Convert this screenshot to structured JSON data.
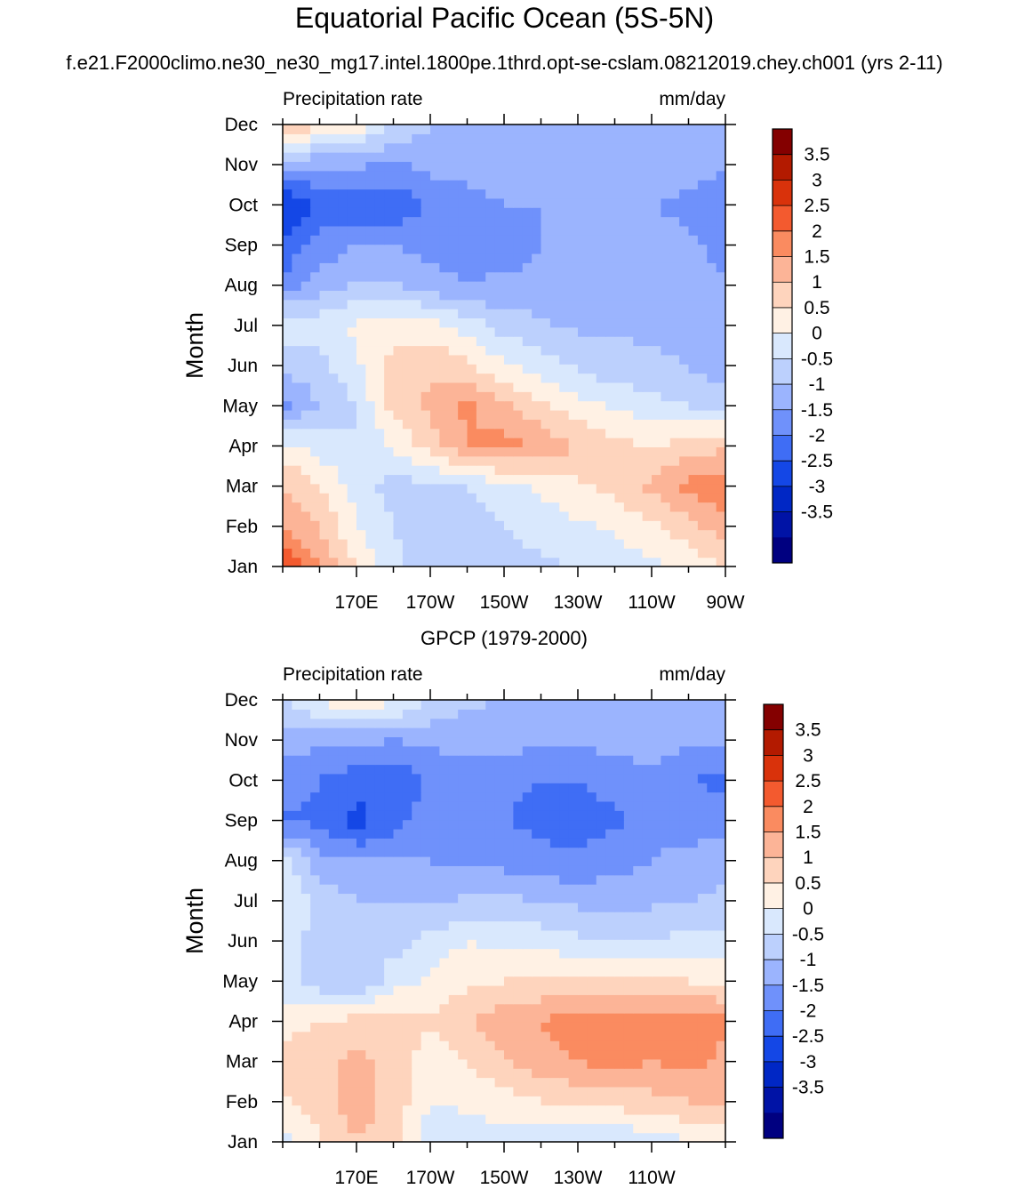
{
  "title": "Equatorial Pacific Ocean (5S-5N)",
  "case_name": "f.e21.F2000climo.ne30_ne30_mg17.intel.1800pe.1thrd.opt-se-cslam.08212019.chey.ch001 (yrs 2-11)",
  "panel2_title": "GPCP (1979-2000)",
  "colors": {
    "levels": [
      "#000080",
      "#0013a6",
      "#0027c5",
      "#1447e6",
      "#3f6df5",
      "#6f91fb",
      "#9bb4fe",
      "#bcd0fd",
      "#d9e8fd",
      "#fff1e4",
      "#fed4bd",
      "#fcb497",
      "#fa8b60",
      "#f35a2f",
      "#d9320b",
      "#b31a00",
      "#840000"
    ]
  },
  "chart_data": [
    {
      "type": "heatmap",
      "title": "",
      "left_label": "Precipitation rate",
      "right_label": "mm/day",
      "ylabel": "Month",
      "xlabel": "",
      "x_ticklabels": [
        "170E",
        "170W",
        "150W",
        "130W",
        "110W",
        "90W"
      ],
      "y_ticklabels": [
        "Jan",
        "Feb",
        "Mar",
        "Apr",
        "May",
        "Jun",
        "Jul",
        "Aug",
        "Sep",
        "Oct",
        "Nov",
        "Dec"
      ],
      "colorbar_labels": [
        "3.5",
        "3",
        "2.5",
        "2",
        "1.5",
        "1",
        "0.5",
        "0",
        "-0.5",
        "-1",
        "-1.5",
        "-2",
        "-2.5",
        "-3",
        "-3.5"
      ],
      "x_columns": [
        "150E",
        "160E",
        "170E",
        "180",
        "170W",
        "160W",
        "150W",
        "140W",
        "130W",
        "120W",
        "110W",
        "100W",
        "90W"
      ],
      "grid": [
        [
          3.0,
          2.0,
          1.0,
          0.2,
          -0.3,
          -0.3,
          -0.2,
          -0.1,
          0.0,
          0.2,
          0.4,
          0.6,
          1.0
        ],
        [
          2.0,
          1.5,
          0.5,
          0.0,
          -0.3,
          -0.2,
          0.0,
          0.2,
          0.4,
          0.6,
          0.9,
          1.3,
          1.8
        ],
        [
          1.5,
          1.0,
          0.3,
          -0.2,
          -0.2,
          0.0,
          0.3,
          0.6,
          0.9,
          1.2,
          1.6,
          2.2,
          2.4
        ],
        [
          0.7,
          0.3,
          0.0,
          0.6,
          1.2,
          2.0,
          2.2,
          1.9,
          1.5,
          1.2,
          1.0,
          1.2,
          1.4
        ],
        [
          -1.2,
          -0.5,
          0.0,
          1.2,
          1.6,
          2.1,
          1.6,
          1.1,
          0.7,
          0.4,
          0.2,
          0.0,
          -0.1
        ],
        [
          -0.3,
          -0.2,
          0.4,
          1.2,
          1.4,
          1.1,
          0.6,
          0.3,
          -0.1,
          -0.3,
          -0.4,
          -0.5,
          -0.9
        ],
        [
          0.4,
          0.3,
          0.6,
          0.8,
          0.7,
          0.3,
          -0.2,
          -0.4,
          -0.6,
          -0.6,
          -0.6,
          -0.7,
          -1.0
        ],
        [
          -1.3,
          -0.8,
          -0.4,
          -0.4,
          -0.8,
          -1.0,
          -0.9,
          -0.9,
          -0.9,
          -0.6,
          -0.5,
          -0.6,
          -1.0
        ],
        [
          -1.9,
          -1.3,
          -1.0,
          -1.0,
          -1.2,
          -1.1,
          -1.2,
          -1.0,
          -0.8,
          -0.7,
          -0.8,
          -0.9,
          -1.2
        ],
        [
          -2.6,
          -1.9,
          -1.9,
          -1.9,
          -1.4,
          -1.2,
          -1.0,
          -1.0,
          -1.0,
          -1.0,
          -1.0,
          -1.1,
          -1.5
        ],
        [
          -0.9,
          -0.9,
          -0.9,
          -1.1,
          -0.8,
          -0.8,
          -0.7,
          -0.7,
          -0.7,
          -0.7,
          -0.7,
          -0.8,
          -0.9
        ],
        [
          1.7,
          1.0,
          0.8,
          0.0,
          -0.5,
          -0.6,
          -0.6,
          -0.5,
          -0.5,
          -0.5,
          -0.5,
          -0.5,
          -0.5
        ]
      ]
    },
    {
      "type": "heatmap",
      "title": "GPCP (1979-2000)",
      "left_label": "Precipitation rate",
      "right_label": "mm/day",
      "ylabel": "Month",
      "xlabel": "",
      "x_ticklabels": [
        "170E",
        "170W",
        "150W",
        "130W",
        "110W"
      ],
      "y_ticklabels": [
        "Jan",
        "Feb",
        "Mar",
        "Apr",
        "May",
        "Jun",
        "Jul",
        "Aug",
        "Sep",
        "Oct",
        "Nov",
        "Dec"
      ],
      "colorbar_labels": [
        "3.5",
        "3",
        "2.5",
        "2",
        "1.5",
        "1",
        "0.5",
        "0",
        "-0.5",
        "-1",
        "-1.5",
        "-2",
        "-2.5",
        "-3",
        "-3.5"
      ],
      "x_columns": [
        "150E",
        "160E",
        "170E",
        "180",
        "170W",
        "160W",
        "150W",
        "140W",
        "130W",
        "120W",
        "110W",
        "100W",
        "90W"
      ],
      "grid": [
        [
          0.3,
          1.0,
          1.5,
          1.2,
          0.1,
          0.2,
          0.2,
          0.2,
          0.1,
          0.0,
          0.3,
          0.4,
          0.4
        ],
        [
          0.9,
          1.2,
          1.8,
          1.3,
          0.5,
          0.6,
          0.8,
          1.0,
          1.1,
          1.2,
          1.3,
          1.5,
          1.6
        ],
        [
          1.2,
          1.4,
          1.6,
          1.4,
          0.7,
          1.0,
          1.4,
          1.8,
          2.0,
          2.2,
          2.0,
          2.2,
          1.8
        ],
        [
          0.8,
          1.0,
          1.2,
          1.2,
          1.1,
          1.5,
          1.9,
          2.0,
          2.3,
          2.3,
          2.2,
          2.3,
          2.2
        ],
        [
          0.2,
          -0.3,
          -0.5,
          0.3,
          0.6,
          0.9,
          1.0,
          1.1,
          1.2,
          1.2,
          1.1,
          1.0,
          0.9
        ],
        [
          0.2,
          -0.2,
          -0.4,
          -0.2,
          0.2,
          0.5,
          0.4,
          0.3,
          0.1,
          0.0,
          0.1,
          0.1,
          0.1
        ],
        [
          0.6,
          -0.2,
          -0.5,
          -0.5,
          -0.6,
          -0.4,
          -0.4,
          -0.5,
          -0.6,
          -0.7,
          -0.6,
          -0.5,
          -0.4
        ],
        [
          0.2,
          -0.8,
          -1.0,
          -1.0,
          -1.0,
          -1.1,
          -1.2,
          -1.4,
          -1.4,
          -1.2,
          -1.0,
          -0.8,
          -0.6
        ],
        [
          -1.6,
          -1.6,
          -2.2,
          -1.7,
          -1.3,
          -1.3,
          -1.5,
          -1.6,
          -1.7,
          -1.6,
          -1.2,
          -1.3,
          -1.2
        ],
        [
          -1.2,
          -1.5,
          -1.8,
          -2.0,
          -1.3,
          -1.2,
          -1.4,
          -1.5,
          -1.5,
          -1.3,
          -1.1,
          -1.5,
          -1.6
        ],
        [
          -0.8,
          -0.9,
          -0.9,
          -1.0,
          -0.9,
          -0.9,
          -0.8,
          -0.9,
          -0.9,
          -0.8,
          -0.8,
          -0.9,
          -0.9
        ],
        [
          -0.1,
          0.6,
          1.1,
          0.6,
          0.0,
          -0.4,
          -0.5,
          -0.5,
          -0.5,
          -0.5,
          -0.5,
          -0.5,
          -0.5
        ]
      ]
    }
  ]
}
